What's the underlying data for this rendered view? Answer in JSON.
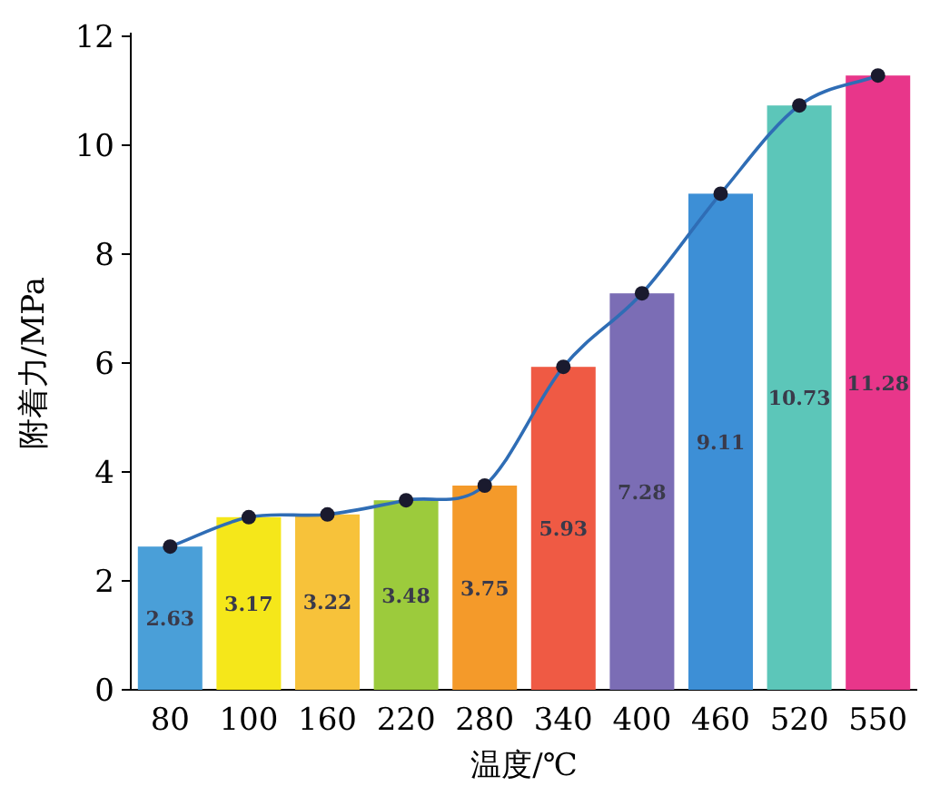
{
  "chart_data": {
    "type": "bar",
    "xlabel": "温度/℃",
    "ylabel": "附着力/MPa",
    "categories": [
      "80",
      "100",
      "160",
      "220",
      "280",
      "340",
      "400",
      "460",
      "520",
      "550"
    ],
    "ylim": [
      0,
      12
    ],
    "yticks": [
      0,
      2,
      4,
      6,
      8,
      10,
      12
    ],
    "series": [
      {
        "value_labels": [
          "2.63",
          "3.17",
          "3.22",
          "3.48",
          "3.75",
          "5.93",
          "7.28",
          "9.11",
          "10.73",
          "11.28"
        ],
        "colors": [
          "#4a9fd8",
          "#f5e71a",
          "#f7c23a",
          "#9ccb3c",
          "#f49a2a",
          "#ef5a44",
          "#7b6db5",
          "#3d8fd6",
          "#5cc6b9",
          "#e8368a"
        ],
        "values": [
          2.63,
          3.17,
          3.22,
          3.48,
          3.75,
          5.93,
          7.28,
          9.11,
          10.73,
          11.28
        ]
      },
      {
        "type": "line",
        "color": "#2f6db5",
        "marker": "circle",
        "values": [
          2.63,
          3.17,
          3.22,
          3.48,
          3.75,
          5.93,
          7.28,
          9.11,
          10.73,
          11.28
        ]
      }
    ]
  }
}
